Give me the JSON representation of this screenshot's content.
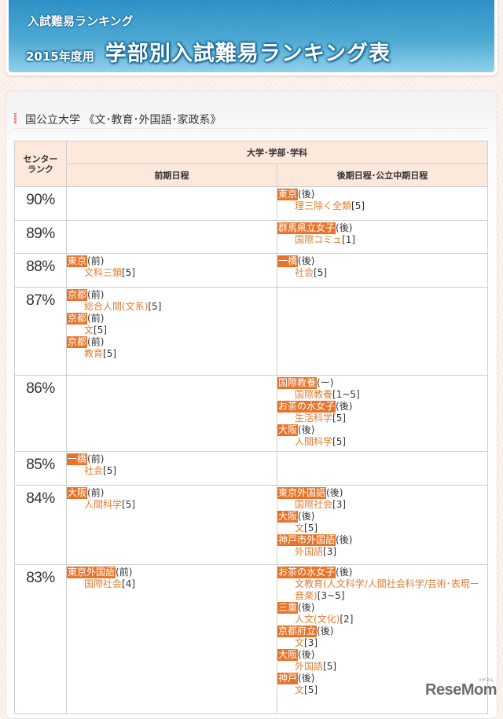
{
  "banner": {
    "subtitle": "入試難易ランキング",
    "year": "2015年度用",
    "title": "学部別入試難易ランキング表"
  },
  "section": {
    "heading": "国公立大学 《文･教育･外国語･家政系》"
  },
  "table": {
    "headers": {
      "rank": "センター\nランク",
      "group": "大学･学部･学科",
      "early": "前期日程",
      "late": "後期日程･公立中期日程"
    },
    "colors": {
      "university_bg": "#e8742a",
      "department_text": "#e47d32",
      "header_bg": "#fde8dc"
    },
    "rows": [
      {
        "rank": "90%",
        "early": [],
        "late": [
          {
            "university": "東京",
            "schedule": "(後)",
            "department": "理三除く全類",
            "capacity": "[5]"
          }
        ]
      },
      {
        "rank": "89%",
        "early": [],
        "late": [
          {
            "university": "群馬県立女子",
            "schedule": "(後)",
            "department": "国際コミュ",
            "capacity": "[1]"
          }
        ]
      },
      {
        "rank": "88%",
        "early": [
          {
            "university": "東京",
            "schedule": "(前)",
            "department": "文科三類",
            "capacity": "[5]"
          }
        ],
        "late": [
          {
            "university": "一橋",
            "schedule": "(後)",
            "department": "社会",
            "capacity": "[5]"
          }
        ]
      },
      {
        "rank": "87%",
        "early": [
          {
            "university": "京都",
            "schedule": "(前)",
            "department": "総合人間(文系)",
            "capacity": "[5]"
          },
          {
            "university": "京都",
            "schedule": "(前)",
            "department": "文",
            "capacity": "[5]"
          },
          {
            "university": "京都",
            "schedule": "(前)",
            "department": "教育",
            "capacity": "[5]"
          }
        ],
        "late": []
      },
      {
        "rank": "86%",
        "early": [],
        "late": [
          {
            "university": "国際教養",
            "schedule": "(ー)",
            "department": "国際教養",
            "capacity": "[1~5]"
          },
          {
            "university": "お茶の水女子",
            "schedule": "(後)",
            "department": "生活科学",
            "capacity": "[5]"
          },
          {
            "university": "大阪",
            "schedule": "(後)",
            "department": "人間科学",
            "capacity": "[5]"
          }
        ]
      },
      {
        "rank": "85%",
        "early": [
          {
            "university": "一橋",
            "schedule": "(前)",
            "department": "社会",
            "capacity": "[5]"
          }
        ],
        "late": []
      },
      {
        "rank": "84%",
        "early": [
          {
            "university": "大阪",
            "schedule": "(前)",
            "department": "人間科学",
            "capacity": "[5]"
          }
        ],
        "late": [
          {
            "university": "東京外国語",
            "schedule": "(後)",
            "department": "国際社会",
            "capacity": "[3]"
          },
          {
            "university": "大阪",
            "schedule": "(後)",
            "department": "文",
            "capacity": "[5]"
          },
          {
            "university": "神戸市外国語",
            "schedule": "(後)",
            "department": "外国語",
            "capacity": "[3]"
          }
        ]
      },
      {
        "rank": "83%",
        "early": [
          {
            "university": "東京外国語",
            "schedule": "(前)",
            "department": "国際社会",
            "capacity": "[4]"
          }
        ],
        "late": [
          {
            "university": "お茶の水女子",
            "schedule": "(後)",
            "department": "文教育(人文科学/人間社会科学/芸術･表現ー音楽)",
            "capacity": "[3~5]"
          },
          {
            "university": "三重",
            "schedule": "(後)",
            "department": "人文(文化)",
            "capacity": "[2]"
          },
          {
            "university": "京都府立",
            "schedule": "(後)",
            "department": "文",
            "capacity": "[3]"
          },
          {
            "university": "大阪",
            "schedule": "(後)",
            "department": "外国語",
            "capacity": "[5]"
          },
          {
            "university": "神戸",
            "schedule": "(後)",
            "department": "文",
            "capacity": "[5]"
          }
        ]
      }
    ]
  },
  "watermark": {
    "logo": "ReseMom",
    "ruby": "リセマム"
  }
}
